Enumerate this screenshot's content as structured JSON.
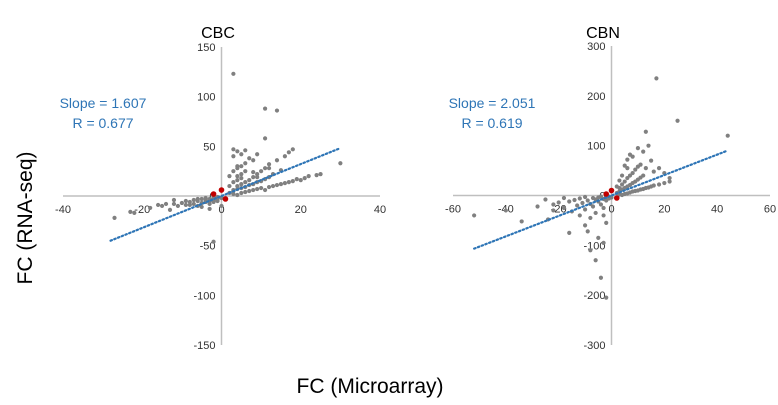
{
  "figure": {
    "ylabel": "FC (RNA-seq)",
    "xlabel": "FC (Microarray)"
  },
  "chart_data": [
    {
      "type": "scatter",
      "title": "CBC",
      "xlim": [
        -40,
        40
      ],
      "ylim": [
        -150,
        150
      ],
      "xticks": [
        -40,
        -20,
        0,
        20,
        40
      ],
      "yticks": [
        -150,
        -100,
        -50,
        0,
        50,
        100,
        150
      ],
      "annotation": [
        "Slope = 1.607",
        "R = 0.677"
      ],
      "trendline": {
        "slope": 1.607,
        "x_range": [
          -28,
          30
        ]
      },
      "colors": {
        "points": "#808080",
        "highlight": "#c00000",
        "trend": "#2e75b6",
        "annotation": "#2e75b6",
        "axis": "#bfbfbf"
      },
      "points": [
        [
          -27,
          -22
        ],
        [
          -23,
          -16
        ],
        [
          -22,
          -17
        ],
        [
          -18,
          -12
        ],
        [
          -16,
          -9
        ],
        [
          -15,
          -10
        ],
        [
          -13,
          -14
        ],
        [
          -12,
          -8
        ],
        [
          -10,
          -7
        ],
        [
          -9,
          -5
        ],
        [
          -8,
          -9
        ],
        [
          -8,
          -6
        ],
        [
          -7,
          -4
        ],
        [
          -7,
          -8
        ],
        [
          -6,
          -5
        ],
        [
          -6,
          -10
        ],
        [
          -5,
          -7
        ],
        [
          -5,
          -3
        ],
        [
          -5,
          -11
        ],
        [
          -4,
          -6
        ],
        [
          -4,
          -2
        ],
        [
          -4,
          -4
        ],
        [
          -3,
          -5
        ],
        [
          -3,
          -3
        ],
        [
          -3,
          -8
        ],
        [
          -2,
          -2
        ],
        [
          -2,
          -4
        ],
        [
          -2,
          -6
        ],
        [
          -2,
          -1
        ],
        [
          -1,
          -3
        ],
        [
          -1,
          -2
        ],
        [
          -1,
          -5
        ],
        [
          -1,
          -1
        ],
        [
          0,
          -2
        ],
        [
          -12,
          -4
        ],
        [
          -14,
          -8
        ],
        [
          -11,
          -10
        ],
        [
          -9,
          -9
        ],
        [
          -6,
          -3
        ],
        [
          -3,
          -13
        ],
        [
          0,
          -10
        ],
        [
          -2,
          -46
        ],
        [
          3,
          2
        ],
        [
          4,
          1
        ],
        [
          5,
          3
        ],
        [
          6,
          4
        ],
        [
          7,
          5
        ],
        [
          8,
          6
        ],
        [
          9,
          7
        ],
        [
          10,
          8
        ],
        [
          11,
          6
        ],
        [
          12,
          9
        ],
        [
          13,
          10
        ],
        [
          14,
          11
        ],
        [
          15,
          12
        ],
        [
          16,
          13
        ],
        [
          17,
          14
        ],
        [
          18,
          15
        ],
        [
          19,
          17
        ],
        [
          20,
          16
        ],
        [
          21,
          18
        ],
        [
          22,
          20
        ],
        [
          24,
          21
        ],
        [
          25,
          22
        ],
        [
          3,
          5
        ],
        [
          4,
          7
        ],
        [
          5,
          8
        ],
        [
          6,
          9
        ],
        [
          7,
          11
        ],
        [
          8,
          12
        ],
        [
          9,
          14
        ],
        [
          10,
          15
        ],
        [
          11,
          17
        ],
        [
          12,
          19
        ],
        [
          2,
          3
        ],
        [
          3,
          6
        ],
        [
          4,
          10
        ],
        [
          5,
          12
        ],
        [
          6,
          14
        ],
        [
          7,
          16
        ],
        [
          8,
          19
        ],
        [
          9,
          22
        ],
        [
          10,
          25
        ],
        [
          11,
          28
        ],
        [
          3,
          40
        ],
        [
          3,
          47
        ],
        [
          4,
          45
        ],
        [
          5,
          30
        ],
        [
          6,
          33
        ],
        [
          7,
          38
        ],
        [
          8,
          36
        ],
        [
          9,
          42
        ],
        [
          4,
          20
        ],
        [
          5,
          22
        ],
        [
          3,
          25
        ],
        [
          4,
          28
        ],
        [
          6,
          25
        ],
        [
          12,
          32
        ],
        [
          14,
          36
        ],
        [
          16,
          40
        ],
        [
          17,
          44
        ],
        [
          2,
          10
        ],
        [
          3,
          14
        ],
        [
          4,
          16
        ],
        [
          5,
          18
        ],
        [
          2,
          20
        ],
        [
          3,
          123
        ],
        [
          11,
          88
        ],
        [
          14,
          86
        ],
        [
          11,
          58
        ],
        [
          18,
          47
        ],
        [
          30,
          33
        ],
        [
          12,
          28
        ],
        [
          4,
          30
        ],
        [
          5,
          42
        ],
        [
          8,
          24
        ],
        [
          9,
          19
        ],
        [
          13,
          22
        ],
        [
          15,
          26
        ],
        [
          6,
          46
        ]
      ],
      "highlight_points": [
        [
          -2,
          2
        ],
        [
          0,
          6
        ],
        [
          1,
          -3
        ]
      ]
    },
    {
      "type": "scatter",
      "title": "CBN",
      "xlim": [
        -60,
        60
      ],
      "ylim": [
        -300,
        300
      ],
      "xticks": [
        -60,
        -40,
        -20,
        0,
        20,
        40,
        60
      ],
      "yticks": [
        -300,
        -200,
        -100,
        0,
        100,
        200,
        300
      ],
      "annotation": [
        "Slope = 2.051",
        "R = 0.619"
      ],
      "trendline": {
        "slope": 2.051,
        "x_range": [
          -52,
          44
        ]
      },
      "colors": {
        "points": "#808080",
        "highlight": "#c00000",
        "trend": "#2e75b6",
        "annotation": "#2e75b6",
        "axis": "#bfbfbf"
      },
      "points": [
        [
          -52,
          -40
        ],
        [
          -40,
          -30
        ],
        [
          -34,
          -52
        ],
        [
          -28,
          -22
        ],
        [
          -25,
          -8
        ],
        [
          -22,
          -18
        ],
        [
          -20,
          -14
        ],
        [
          -18,
          -25
        ],
        [
          -16,
          -12
        ],
        [
          -15,
          -32
        ],
        [
          -14,
          -9
        ],
        [
          -13,
          -20
        ],
        [
          -12,
          -6
        ],
        [
          -11,
          -15
        ],
        [
          -10,
          -28
        ],
        [
          -10,
          -3
        ],
        [
          -9,
          -10
        ],
        [
          -8,
          -45
        ],
        [
          -8,
          -17
        ],
        [
          -7,
          -5
        ],
        [
          -7,
          -22
        ],
        [
          -6,
          -8
        ],
        [
          -6,
          -35
        ],
        [
          -5,
          -12
        ],
        [
          -5,
          -4
        ],
        [
          -4,
          -18
        ],
        [
          -4,
          -2
        ],
        [
          -3,
          -7
        ],
        [
          -3,
          -25
        ],
        [
          -2,
          -3
        ],
        [
          -2,
          -10
        ],
        [
          -2,
          -5
        ],
        [
          -1,
          -2
        ],
        [
          -1,
          -6
        ],
        [
          0,
          -4
        ],
        [
          -22,
          -30
        ],
        [
          -18,
          -5
        ],
        [
          -12,
          -40
        ],
        [
          -10,
          -60
        ],
        [
          -9,
          -72
        ],
        [
          -6,
          -130
        ],
        [
          -4,
          -165
        ],
        [
          -3,
          -95
        ],
        [
          -5,
          -85
        ],
        [
          -2,
          -205
        ],
        [
          -16,
          -75
        ],
        [
          -24,
          -48
        ],
        [
          -2,
          -55
        ],
        [
          -3,
          -40
        ],
        [
          -8,
          -110
        ],
        [
          3,
          2
        ],
        [
          4,
          1
        ],
        [
          5,
          3
        ],
        [
          6,
          4
        ],
        [
          7,
          6
        ],
        [
          8,
          8
        ],
        [
          9,
          9
        ],
        [
          10,
          10
        ],
        [
          11,
          12
        ],
        [
          12,
          13
        ],
        [
          13,
          15
        ],
        [
          14,
          16
        ],
        [
          15,
          18
        ],
        [
          16,
          20
        ],
        [
          18,
          22
        ],
        [
          20,
          25
        ],
        [
          22,
          28
        ],
        [
          3,
          8
        ],
        [
          4,
          12
        ],
        [
          5,
          15
        ],
        [
          6,
          18
        ],
        [
          7,
          21
        ],
        [
          8,
          25
        ],
        [
          9,
          28
        ],
        [
          10,
          32
        ],
        [
          11,
          36
        ],
        [
          12,
          40
        ],
        [
          2,
          5
        ],
        [
          3,
          15
        ],
        [
          4,
          22
        ],
        [
          5,
          28
        ],
        [
          6,
          35
        ],
        [
          7,
          40
        ],
        [
          8,
          45
        ],
        [
          9,
          52
        ],
        [
          10,
          58
        ],
        [
          11,
          62
        ],
        [
          5,
          60
        ],
        [
          6,
          72
        ],
        [
          7,
          82
        ],
        [
          8,
          78
        ],
        [
          10,
          95
        ],
        [
          12,
          88
        ],
        [
          14,
          100
        ],
        [
          15,
          70
        ],
        [
          16,
          48
        ],
        [
          18,
          55
        ],
        [
          20,
          45
        ],
        [
          4,
          40
        ],
        [
          3,
          30
        ],
        [
          2,
          18
        ],
        [
          6,
          55
        ],
        [
          13,
          128
        ],
        [
          17,
          235
        ],
        [
          25,
          150
        ],
        [
          44,
          120
        ],
        [
          13,
          55
        ],
        [
          22,
          35
        ]
      ],
      "highlight_points": [
        [
          -2,
          3
        ],
        [
          0,
          10
        ],
        [
          2,
          -5
        ]
      ]
    }
  ]
}
